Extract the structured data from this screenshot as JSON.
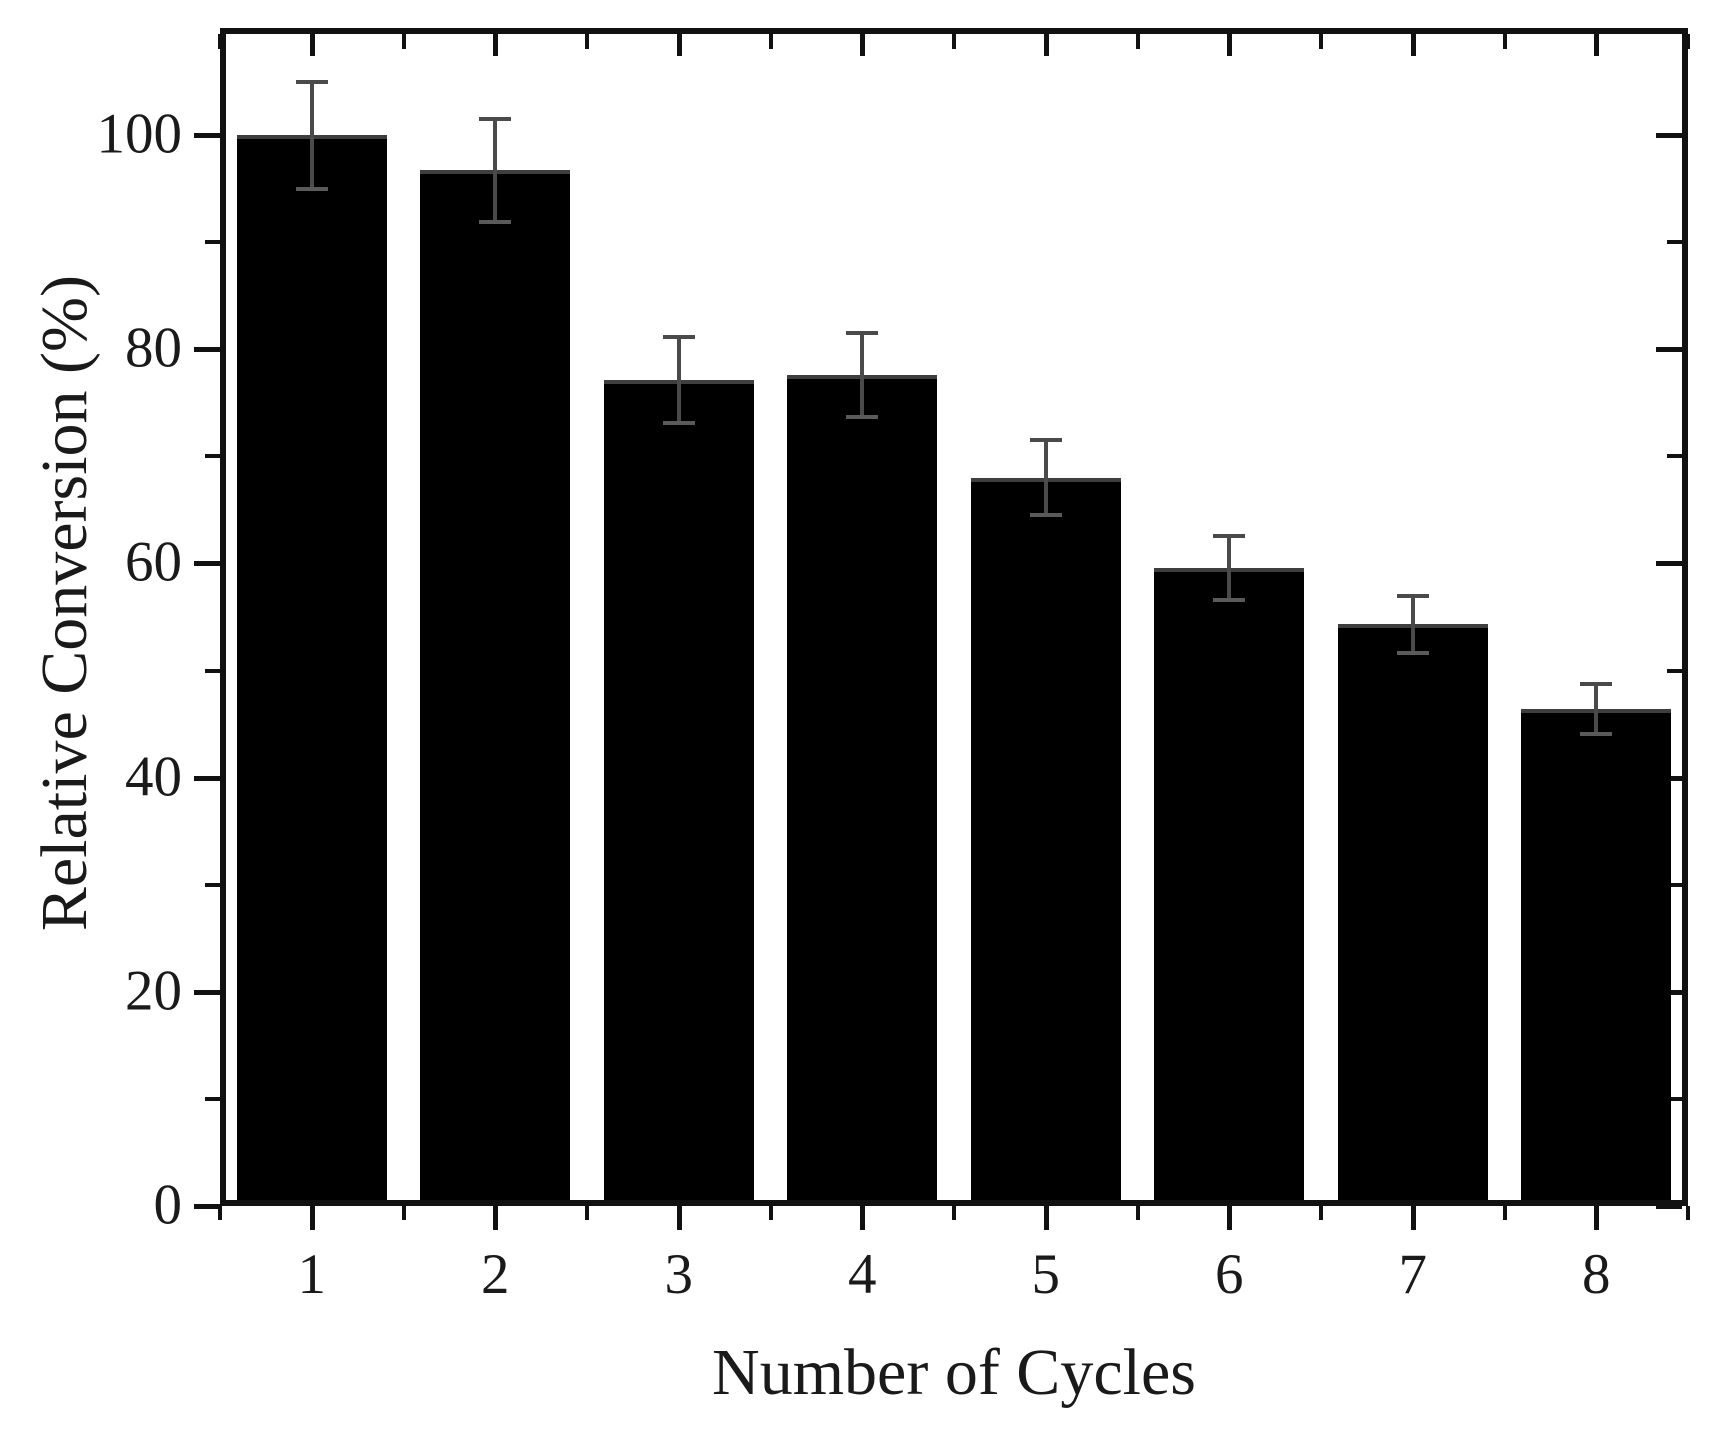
{
  "figure": {
    "background": "#ffffff"
  },
  "chart_data": {
    "type": "bar",
    "title": "",
    "xlabel": "Number of Cycles",
    "ylabel": "Relative Conversion (%)",
    "categories": [
      "1",
      "2",
      "3",
      "4",
      "5",
      "6",
      "7",
      "8"
    ],
    "series": [
      {
        "name": "Relative Conversion",
        "values": [
          100.0,
          96.7,
          77.1,
          77.6,
          68.0,
          59.6,
          54.3,
          46.4
        ],
        "error_bars": [
          5.0,
          4.8,
          4.0,
          3.9,
          3.5,
          3.0,
          2.7,
          2.3
        ]
      }
    ],
    "ylim": [
      0,
      110
    ],
    "yticks_major": [
      0,
      20,
      40,
      60,
      80,
      100
    ],
    "yticks_minor": [
      10,
      30,
      50,
      70,
      90
    ],
    "xticks_major_positions": [
      1,
      2,
      3,
      4,
      5,
      6,
      7,
      8
    ],
    "xticks_minor_positions": [
      0.5,
      1.5,
      2.5,
      3.5,
      4.5,
      5.5,
      6.5,
      7.5,
      8.5
    ],
    "grid": false,
    "legend": null,
    "bar_color": "#000000",
    "bar_top_edge_color": "#3e3e3e",
    "error_bar_color": "#4a4a4a",
    "axis_color": "#111111",
    "text_color": "#1a1a1a"
  }
}
